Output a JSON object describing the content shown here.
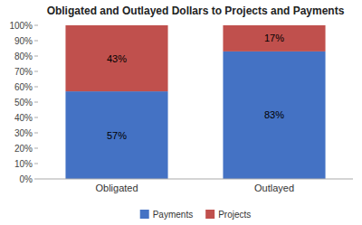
{
  "chart_data": {
    "type": "bar",
    "title": "Obligated and Outlayed Dollars to Projects and Payments",
    "categories": [
      "Obligated",
      "Outlayed"
    ],
    "series": [
      {
        "name": "Payments",
        "color": "#4472C4",
        "values": [
          57,
          83
        ],
        "value_labels": [
          "57%",
          "83%"
        ]
      },
      {
        "name": "Projects",
        "color": "#C0504D",
        "values": [
          43,
          17
        ],
        "value_labels": [
          "43%",
          "17%"
        ]
      }
    ],
    "stacked": true,
    "data_labels": true,
    "grid": false,
    "legend": "bottom",
    "ylim": [
      0,
      100
    ],
    "yticks": [
      {
        "value": 0,
        "label": "0%"
      },
      {
        "value": 10,
        "label": "10%"
      },
      {
        "value": 20,
        "label": "20%"
      },
      {
        "value": 30,
        "label": "30%"
      },
      {
        "value": 40,
        "label": "40%"
      },
      {
        "value": 50,
        "label": "50%"
      },
      {
        "value": 60,
        "label": "60%"
      },
      {
        "value": 70,
        "label": "70%"
      },
      {
        "value": 80,
        "label": "80%"
      },
      {
        "value": 90,
        "label": "90%"
      },
      {
        "value": 100,
        "label": "100%"
      }
    ]
  }
}
